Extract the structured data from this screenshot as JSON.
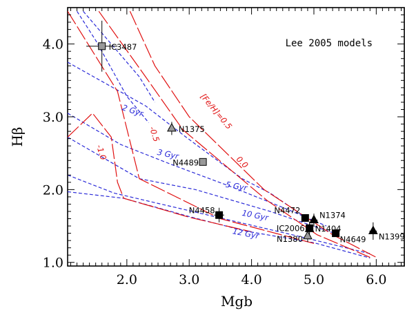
{
  "chart_data": {
    "type": "scatter",
    "legend_text": "Lee 2005 models",
    "xlabel": "Mgb",
    "ylabel": "Hβ",
    "xlim": [
      1.05,
      6.45
    ],
    "ylim": [
      0.95,
      4.5
    ],
    "xticks": [
      {
        "value": 2,
        "label": "2.0"
      },
      {
        "value": 3,
        "label": "3.0"
      },
      {
        "value": 4,
        "label": "4.0"
      },
      {
        "value": 5,
        "label": "5.0"
      },
      {
        "value": 6,
        "label": "6.0"
      }
    ],
    "yticks": [
      {
        "value": 1,
        "label": "1.0"
      },
      {
        "value": 2,
        "label": "2.0"
      },
      {
        "value": 3,
        "label": "3.0"
      },
      {
        "value": 4,
        "label": "4.0"
      }
    ],
    "colors": {
      "age_lines": "#2a2ad8",
      "metallicity_lines": "#e01010",
      "gray": "#999999",
      "black": "#000000"
    },
    "age_lines": [
      {
        "label": "2 Gyr",
        "points": [
          [
            1.05,
            3.75
          ],
          [
            2.3,
            3.15
          ],
          [
            2.95,
            2.72
          ],
          [
            3.85,
            2.15
          ],
          [
            4.3,
            1.95
          ],
          [
            4.9,
            1.6
          ]
        ]
      },
      {
        "label": "3 Gyr",
        "points": [
          [
            1.05,
            3.05
          ],
          [
            1.9,
            2.62
          ],
          [
            2.7,
            2.35
          ],
          [
            3.7,
            2.03
          ],
          [
            4.6,
            1.72
          ],
          [
            5.2,
            1.5
          ]
        ]
      },
      {
        "label": "5 Gyr",
        "points": [
          [
            1.05,
            2.72
          ],
          [
            2.2,
            2.15
          ],
          [
            3.1,
            2.0
          ],
          [
            4.3,
            1.7
          ],
          [
            5.4,
            1.38
          ]
        ]
      },
      {
        "label": "10 Gyr",
        "points": [
          [
            1.05,
            2.2
          ],
          [
            1.8,
            1.95
          ],
          [
            2.9,
            1.73
          ],
          [
            3.9,
            1.53
          ],
          [
            4.8,
            1.35
          ],
          [
            5.9,
            1.12
          ]
        ]
      },
      {
        "label": "12 Gyr",
        "points": [
          [
            1.05,
            1.97
          ],
          [
            1.95,
            1.88
          ],
          [
            3.0,
            1.63
          ],
          [
            3.9,
            1.43
          ],
          [
            5.0,
            1.27
          ],
          [
            5.9,
            1.06
          ]
        ]
      }
    ],
    "extra_dashed": [
      {
        "points": [
          [
            1.2,
            4.45
          ],
          [
            1.5,
            4.05
          ],
          [
            2.0,
            3.28
          ],
          [
            2.35,
            2.92
          ]
        ]
      },
      {
        "points": [
          [
            1.3,
            4.45
          ],
          [
            1.6,
            4.15
          ],
          [
            2.2,
            3.55
          ],
          [
            2.45,
            3.2
          ]
        ]
      }
    ],
    "metallicity_lines": [
      {
        "label": "[Fe/H]=0.5",
        "points": [
          [
            2.05,
            4.45
          ],
          [
            2.45,
            3.7
          ],
          [
            3.0,
            3.0
          ],
          [
            4.2,
            2.0
          ],
          [
            5.3,
            1.38
          ],
          [
            6.0,
            1.07
          ]
        ]
      },
      {
        "label": "0.0",
        "points": [
          [
            1.55,
            4.45
          ],
          [
            2.3,
            3.55
          ],
          [
            2.9,
            2.82
          ],
          [
            4.25,
            1.85
          ],
          [
            5.05,
            1.38
          ],
          [
            5.9,
            1.07
          ]
        ]
      },
      {
        "label": "-0.5",
        "points": [
          [
            1.05,
            4.45
          ],
          [
            1.85,
            3.35
          ],
          [
            2.2,
            2.15
          ],
          [
            3.5,
            1.6
          ],
          [
            5.0,
            1.26
          ]
        ]
      },
      {
        "label": "-1.0",
        "points": [
          [
            1.05,
            2.72
          ],
          [
            1.45,
            3.05
          ],
          [
            1.75,
            2.72
          ],
          [
            1.85,
            2.1
          ],
          [
            1.95,
            1.88
          ],
          [
            3.0,
            1.62
          ],
          [
            4.0,
            1.42
          ]
        ]
      }
    ],
    "points": [
      {
        "name": "IC3487",
        "x": 1.6,
        "y": 3.97,
        "marker": "square",
        "color": "gray",
        "xerr": 0.25,
        "yerr": 0.35
      },
      {
        "name": "N1375",
        "x": 2.72,
        "y": 2.84,
        "marker": "triangle",
        "color": "gray",
        "xerr": 0.05,
        "yerr": 0.09
      },
      {
        "name": "N4489",
        "x": 3.22,
        "y": 2.38,
        "marker": "square",
        "color": "gray",
        "xerr": 0.05,
        "yerr": 0.05
      },
      {
        "name": "N4458",
        "x": 3.48,
        "y": 1.65,
        "marker": "square",
        "color": "black",
        "xerr": 0.08,
        "yerr": 0.1
      },
      {
        "name": "N4472",
        "x": 4.86,
        "y": 1.61,
        "marker": "square",
        "color": "black",
        "xerr": 0.04,
        "yerr": 0.05
      },
      {
        "name": "N1374",
        "x": 5.0,
        "y": 1.58,
        "marker": "triangle",
        "color": "black",
        "xerr": 0.06,
        "yerr": 0.09
      },
      {
        "name": "IC2006",
        "x": 4.93,
        "y": 1.46,
        "marker": "triangle",
        "color": "black",
        "xerr": 0.05,
        "yerr": 0.1
      },
      {
        "name": "N1404",
        "x": 4.93,
        "y": 1.47,
        "marker": "square",
        "color": "black",
        "xerr": 0.04,
        "yerr": 0.05
      },
      {
        "name": "N1380",
        "x": 4.9,
        "y": 1.36,
        "marker": "triangle",
        "color": "gray",
        "xerr": 0.05,
        "yerr": 0.08
      },
      {
        "name": "N4649",
        "x": 5.35,
        "y": 1.4,
        "marker": "square",
        "color": "black",
        "xerr": 0.04,
        "yerr": 0.05
      },
      {
        "name": "N1399",
        "x": 5.95,
        "y": 1.43,
        "marker": "triangle",
        "color": "black",
        "xerr": 0.06,
        "yerr": 0.12
      }
    ]
  }
}
